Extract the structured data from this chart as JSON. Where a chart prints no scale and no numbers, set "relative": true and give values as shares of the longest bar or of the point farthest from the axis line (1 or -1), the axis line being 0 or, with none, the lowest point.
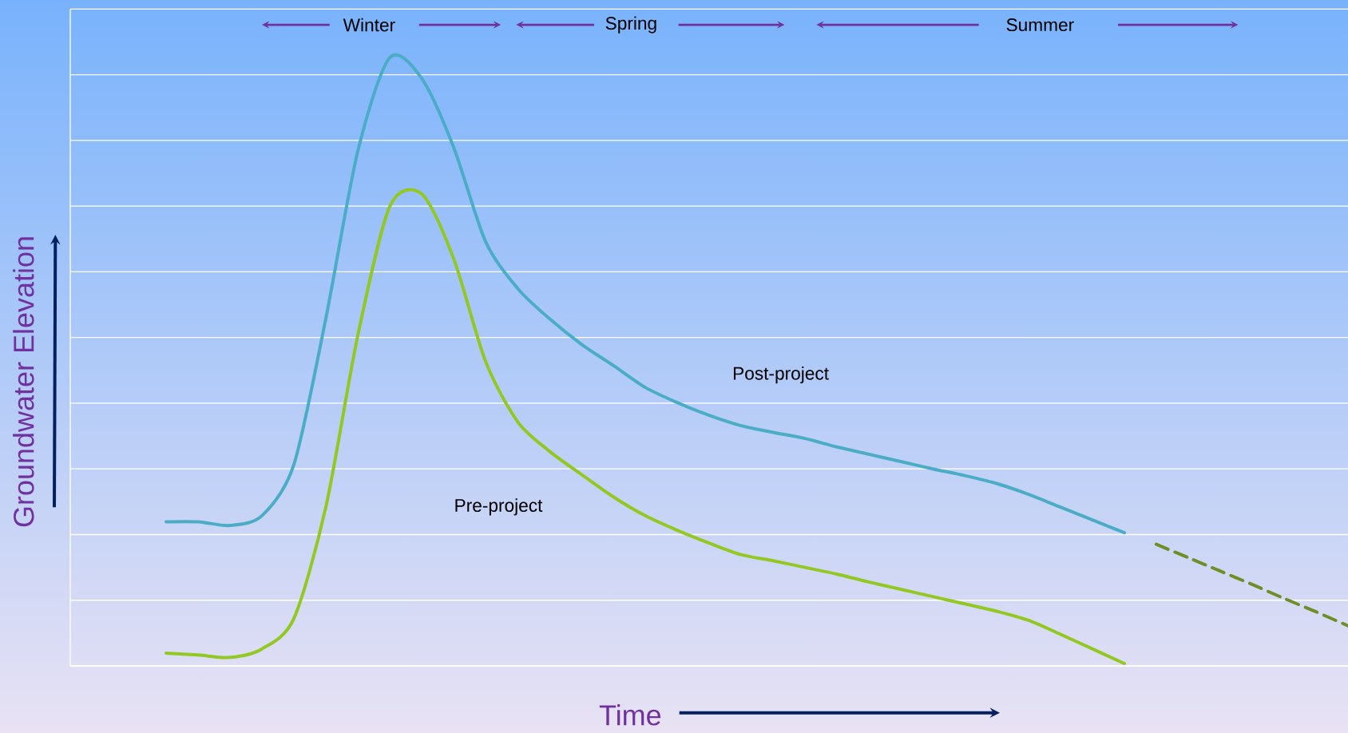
{
  "chart_data": {
    "type": "line",
    "relative": true,
    "grid": "y",
    "xlabel": "Time",
    "ylabel": "Groundwater Elevation",
    "categories": [
      null,
      null,
      null,
      null,
      null,
      null,
      null,
      null,
      null,
      null,
      null,
      null,
      null,
      null,
      null,
      null,
      null,
      null,
      null,
      null,
      null,
      null,
      null,
      null,
      null,
      null,
      null,
      null,
      null,
      null,
      null,
      null,
      null,
      null,
      null,
      null,
      null,
      null,
      null,
      null,
      null
    ],
    "series": [
      {
        "name": "Post-project",
        "color": "#4bacc6",
        "values": [
          null,
          null,
          null,
          0.237,
          0.237,
          0.231,
          0.247,
          0.331,
          0.571,
          0.846,
          1.0,
          0.966,
          0.853,
          0.698,
          0.621,
          0.571,
          0.529,
          0.494,
          0.458,
          0.433,
          0.412,
          0.395,
          0.384,
          0.374,
          0.36,
          0.348,
          0.336,
          0.324,
          0.313,
          0.3,
          0.282,
          0.261,
          0.24,
          0.219,
          null,
          null,
          null,
          null,
          null,
          null,
          null
        ]
      },
      {
        "name": "Pre-project",
        "color": "#92c821",
        "values": [
          null,
          null,
          null,
          0.021,
          0.018,
          0.014,
          0.028,
          0.078,
          0.261,
          0.543,
          0.755,
          0.776,
          0.67,
          0.501,
          0.402,
          0.353,
          0.315,
          0.278,
          0.247,
          0.223,
          0.202,
          0.183,
          0.173,
          0.162,
          0.151,
          0.138,
          0.126,
          0.114,
          0.102,
          0.09,
          0.075,
          0.052,
          0.028,
          0.004,
          null,
          null,
          null,
          null,
          null,
          null,
          null
        ]
      },
      {
        "color": "#6f8f26",
        "line_style": "dashed",
        "values": [
          null,
          null,
          null,
          null,
          null,
          null,
          null,
          null,
          null,
          null,
          null,
          null,
          null,
          null,
          null,
          null,
          null,
          null,
          null,
          null,
          null,
          null,
          null,
          null,
          null,
          null,
          null,
          null,
          null,
          null,
          null,
          null,
          null,
          null,
          0.2,
          0.178,
          0.156,
          0.134,
          0.111,
          0.089,
          0.066
        ]
      }
    ],
    "annotations": [
      "Winter",
      "Spring",
      "Summer"
    ]
  }
}
